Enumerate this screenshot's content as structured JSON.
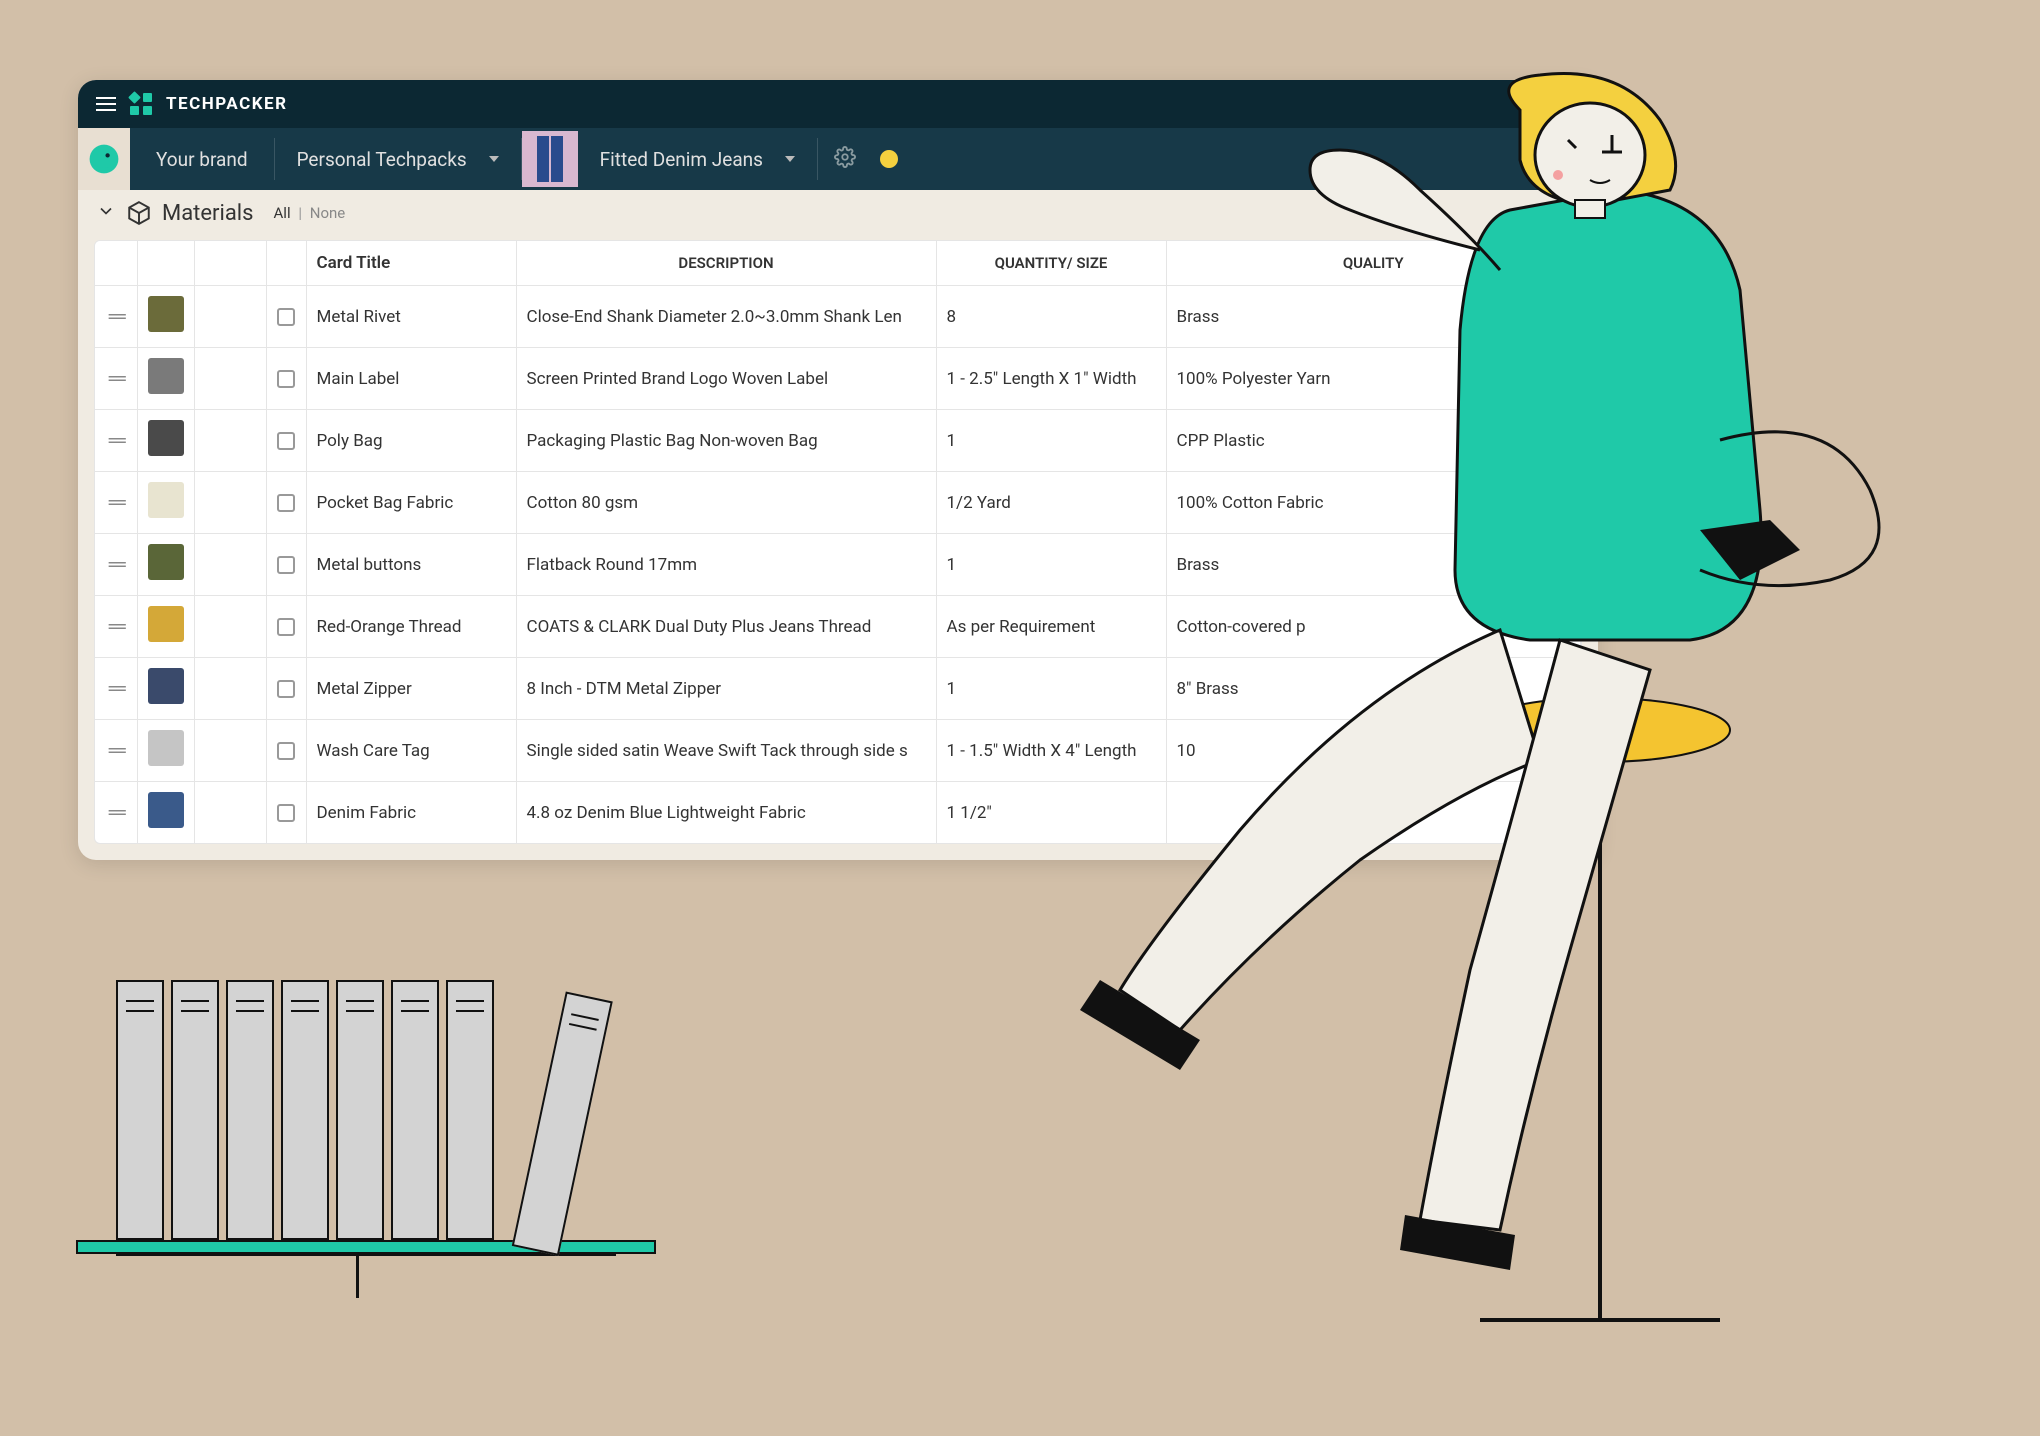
{
  "colors": {
    "page_bg": "#d2bfa8",
    "topbar_bg": "#0c2833",
    "subbar_bg": "#173948",
    "panel_bg": "#f0ebe2",
    "accent": "#1fc9a8",
    "yellow": "#f4d03f"
  },
  "topbar": {
    "brand_name": "TECHPACKER"
  },
  "subbar": {
    "brand_label": "Your brand",
    "techpacks_dd": "Personal Techpacks",
    "item_dd": "Fitted Denim Jeans"
  },
  "section": {
    "title": "Materials",
    "filter_all": "All",
    "filter_none": "None"
  },
  "table": {
    "columns": {
      "title": "Card Title",
      "description": "DESCRIPTION",
      "quantity": "QUANTITY/ SIZE",
      "quality": "QUALITY"
    },
    "rows": [
      {
        "thumb_color": "#6b6b3a",
        "title": "Metal Rivet",
        "description": "Close-End  Shank Diameter 2.0~3.0mm Shank Len",
        "quantity": "8",
        "quality": "Brass"
      },
      {
        "thumb_color": "#7a7a7a",
        "title": "Main Label",
        "description": "Screen Printed Brand Logo Woven Label",
        "quantity": "1 - 2.5\" Length X 1\" Width",
        "quality": "100% Polyester Yarn"
      },
      {
        "thumb_color": "#4a4a4a",
        "title": "Poly Bag",
        "description": "Packaging Plastic Bag Non-woven Bag",
        "quantity": "1",
        "quality": "CPP Plastic"
      },
      {
        "thumb_color": "#e8e4d0",
        "title": "Pocket Bag Fabric",
        "description": "Cotton 80 gsm",
        "quantity": "1/2 Yard",
        "quality": "100% Cotton Fabric"
      },
      {
        "thumb_color": "#5a6638",
        "title": "Metal buttons",
        "description": "Flatback Round 17mm",
        "quantity": "1",
        "quality": "Brass"
      },
      {
        "thumb_color": "#d4a838",
        "title": "Red-Orange Thread",
        "description": "COATS & CLARK Dual Duty Plus Jeans Thread",
        "quantity": "As per Requirement",
        "quality": "Cotton-covered p"
      },
      {
        "thumb_color": "#3a4a6b",
        "title": "Metal Zipper",
        "description": " 8 Inch - DTM Metal Zipper",
        "quantity": "1",
        "quality": "8\" Brass"
      },
      {
        "thumb_color": "#c5c5c5",
        "title": "Wash Care Tag",
        "description": "Single sided satin Weave Swift Tack through side s",
        "quantity": "1 - 1.5\" Width X 4\" Length",
        "quality": "10"
      },
      {
        "thumb_color": "#3a5a8a",
        "title": "Denim Fabric",
        "description": "4.8 oz Denim Blue Lightweight Fabric",
        "quantity": "1 1/2\"",
        "quality": ""
      }
    ]
  }
}
